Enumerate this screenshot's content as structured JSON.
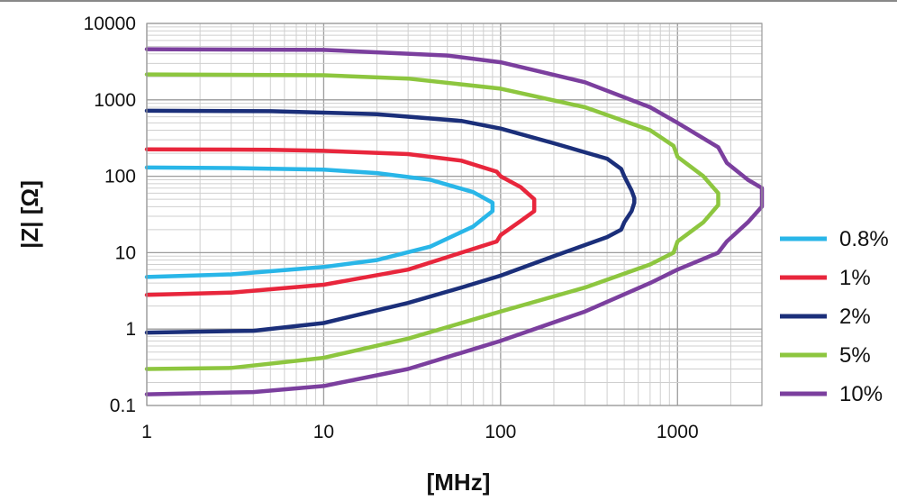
{
  "chart_data": {
    "type": "line",
    "xscale": "log",
    "yscale": "log",
    "xlim": [
      1,
      3000
    ],
    "ylim": [
      0.1,
      10000
    ],
    "grid": true,
    "xlabel": "[MHz]",
    "ylabel": "|Z| [Ω]",
    "xtick_labels": [
      "1",
      "10",
      "100",
      "1000"
    ],
    "ytick_labels": [
      "0.1",
      "1",
      "10",
      "100",
      "1000",
      "10000"
    ],
    "legend_position": "right",
    "series": [
      {
        "name": "0.8%",
        "color": "#29b6e8",
        "upper": [
          [
            1,
            130
          ],
          [
            3,
            128
          ],
          [
            10,
            122
          ],
          [
            20,
            110
          ],
          [
            40,
            90
          ],
          [
            70,
            62
          ],
          [
            90,
            45
          ]
        ],
        "lower": [
          [
            1,
            4.8
          ],
          [
            3,
            5.2
          ],
          [
            10,
            6.5
          ],
          [
            20,
            8
          ],
          [
            40,
            12
          ],
          [
            70,
            22
          ],
          [
            90,
            35
          ]
        ]
      },
      {
        "name": "1%",
        "color": "#e8263c",
        "upper": [
          [
            1,
            225
          ],
          [
            5,
            222
          ],
          [
            10,
            215
          ],
          [
            30,
            195
          ],
          [
            60,
            160
          ],
          [
            95,
            115
          ],
          [
            100,
            100
          ],
          [
            130,
            72
          ],
          [
            155,
            50
          ]
        ],
        "lower": [
          [
            1,
            2.8
          ],
          [
            3,
            3.0
          ],
          [
            10,
            3.8
          ],
          [
            30,
            6
          ],
          [
            60,
            10
          ],
          [
            95,
            14
          ],
          [
            100,
            17
          ],
          [
            130,
            26
          ],
          [
            155,
            35
          ]
        ]
      },
      {
        "name": "2%",
        "color": "#1b2f7a",
        "upper": [
          [
            1,
            720
          ],
          [
            5,
            710
          ],
          [
            20,
            650
          ],
          [
            60,
            530
          ],
          [
            100,
            420
          ],
          [
            200,
            270
          ],
          [
            400,
            170
          ],
          [
            480,
            125
          ],
          [
            500,
            100
          ],
          [
            550,
            65
          ],
          [
            570,
            52
          ]
        ],
        "lower": [
          [
            1,
            0.9
          ],
          [
            4,
            0.95
          ],
          [
            10,
            1.2
          ],
          [
            30,
            2.2
          ],
          [
            60,
            3.5
          ],
          [
            100,
            5
          ],
          [
            200,
            9
          ],
          [
            400,
            16
          ],
          [
            480,
            20
          ],
          [
            500,
            25
          ],
          [
            550,
            35
          ],
          [
            570,
            45
          ]
        ]
      },
      {
        "name": "5%",
        "color": "#8dc63f",
        "upper": [
          [
            1,
            2150
          ],
          [
            10,
            2100
          ],
          [
            30,
            1900
          ],
          [
            100,
            1400
          ],
          [
            300,
            800
          ],
          [
            700,
            400
          ],
          [
            950,
            250
          ],
          [
            1000,
            180
          ],
          [
            1400,
            100
          ],
          [
            1700,
            60
          ]
        ],
        "lower": [
          [
            1,
            0.3
          ],
          [
            3,
            0.31
          ],
          [
            10,
            0.42
          ],
          [
            30,
            0.75
          ],
          [
            100,
            1.7
          ],
          [
            300,
            3.5
          ],
          [
            700,
            7
          ],
          [
            950,
            10
          ],
          [
            1000,
            14
          ],
          [
            1400,
            25
          ],
          [
            1700,
            42
          ]
        ]
      },
      {
        "name": "10%",
        "color": "#7b3f9e",
        "upper": [
          [
            1,
            4600
          ],
          [
            10,
            4500
          ],
          [
            50,
            3800
          ],
          [
            100,
            3100
          ],
          [
            300,
            1700
          ],
          [
            700,
            800
          ],
          [
            1000,
            500
          ],
          [
            1700,
            240
          ],
          [
            1900,
            150
          ],
          [
            2500,
            90
          ],
          [
            3000,
            70
          ]
        ],
        "lower": [
          [
            1,
            0.14
          ],
          [
            4,
            0.15
          ],
          [
            10,
            0.18
          ],
          [
            30,
            0.3
          ],
          [
            100,
            0.7
          ],
          [
            300,
            1.7
          ],
          [
            700,
            4
          ],
          [
            1000,
            6
          ],
          [
            1700,
            10
          ],
          [
            1900,
            14
          ],
          [
            2500,
            25
          ],
          [
            3000,
            40
          ]
        ]
      }
    ]
  }
}
